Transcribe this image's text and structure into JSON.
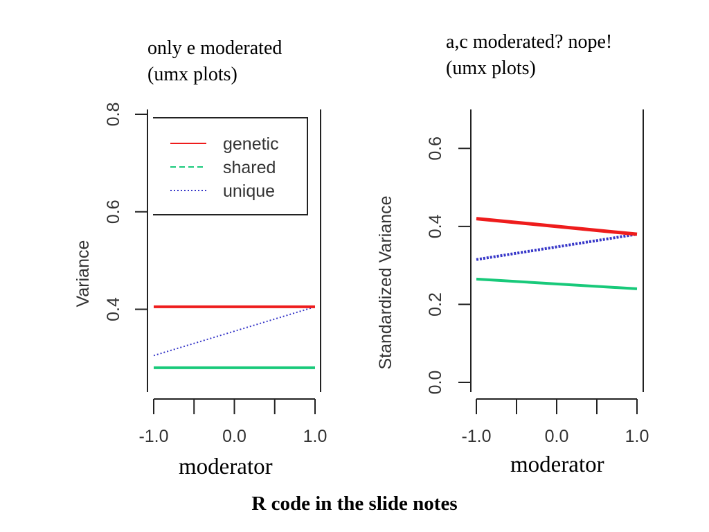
{
  "captions": {
    "left_line1": "only e moderated",
    "left_line2": "(umx plots)",
    "right_line1": "a,c moderated? nope!",
    "right_line2": "(umx plots)"
  },
  "footer": "R code in the slide notes",
  "colors": {
    "genetic": "#ee1c1c",
    "shared": "#18c97a",
    "unique": "#3636c8",
    "axis": "#222222"
  },
  "chart_data": [
    {
      "type": "line",
      "xlabel": "moderator",
      "ylabel": "Variance",
      "ylim": [
        0.25,
        0.8
      ],
      "xlim": [
        -1.0,
        1.0
      ],
      "x_ticks": [
        -1.0,
        -0.5,
        0.0,
        0.5,
        1.0
      ],
      "x_tick_labels": [
        "-1.0",
        "",
        "0.0",
        "",
        "1.0"
      ],
      "y_ticks": [
        0.4,
        0.6,
        0.8
      ],
      "y_tick_labels": [
        "0.4",
        "0.6",
        "0.8"
      ],
      "legend": {
        "placement": "top-left",
        "entries": [
          "genetic",
          "shared",
          "unique"
        ]
      },
      "series": [
        {
          "name": "genetic",
          "style": "solid",
          "x": [
            -1.0,
            1.0
          ],
          "y": [
            0.405,
            0.405
          ]
        },
        {
          "name": "shared",
          "style": "dashed",
          "x": [
            -1.0,
            1.0
          ],
          "y": [
            0.28,
            0.28
          ]
        },
        {
          "name": "unique",
          "style": "dotted",
          "x": [
            -1.0,
            1.0
          ],
          "y": [
            0.305,
            0.405
          ]
        }
      ]
    },
    {
      "type": "line",
      "xlabel": "moderator",
      "ylabel": "Standardized Variance",
      "ylim": [
        0.0,
        0.7
      ],
      "xlim": [
        -1.0,
        1.0
      ],
      "x_ticks": [
        -1.0,
        -0.5,
        0.0,
        0.5,
        1.0
      ],
      "x_tick_labels": [
        "-1.0",
        "",
        "0.0",
        "",
        "1.0"
      ],
      "y_ticks": [
        0.0,
        0.2,
        0.4,
        0.6
      ],
      "y_tick_labels": [
        "0.0",
        "0.2",
        "0.4",
        "0.6"
      ],
      "series": [
        {
          "name": "genetic",
          "style": "solid",
          "x": [
            -1.0,
            1.0
          ],
          "y": [
            0.42,
            0.38
          ]
        },
        {
          "name": "shared",
          "style": "dashed",
          "x": [
            -1.0,
            1.0
          ],
          "y": [
            0.265,
            0.24
          ]
        },
        {
          "name": "unique",
          "style": "dotted",
          "x": [
            -1.0,
            1.0
          ],
          "y": [
            0.315,
            0.38
          ]
        }
      ]
    }
  ]
}
